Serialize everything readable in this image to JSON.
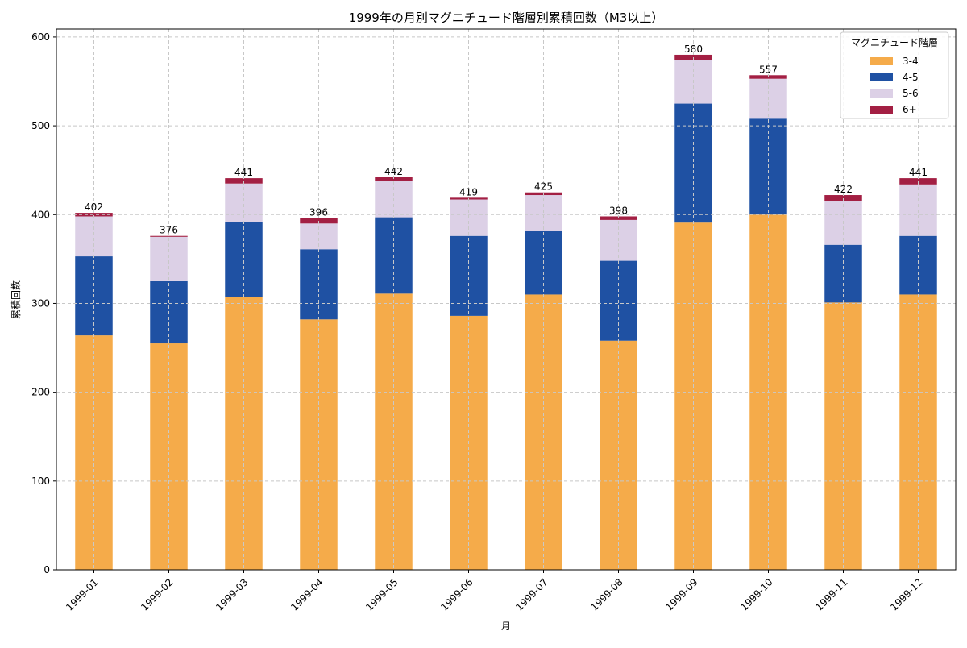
{
  "chart_data": {
    "type": "bar",
    "stacked": true,
    "title": "1999年の月別マグニチュード階層別累積回数（M3以上）",
    "xlabel": "月",
    "ylabel": "累積回数",
    "ylim": [
      0,
      609
    ],
    "yticks": [
      0,
      100,
      200,
      300,
      400,
      500,
      600
    ],
    "grid": true,
    "legend": {
      "title": "マグニチュード階層",
      "placement": "top-right"
    },
    "categories": [
      "1999-01",
      "1999-02",
      "1999-03",
      "1999-04",
      "1999-05",
      "1999-06",
      "1999-07",
      "1999-08",
      "1999-09",
      "1999-10",
      "1999-11",
      "1999-12"
    ],
    "series": [
      {
        "name": "3-4",
        "color": "#f5ab4a",
        "values": [
          264,
          255,
          307,
          282,
          311,
          286,
          310,
          258,
          391,
          400,
          301,
          310
        ]
      },
      {
        "name": "4-5",
        "color": "#1f51a3",
        "values": [
          89,
          70,
          85,
          79,
          86,
          90,
          72,
          90,
          134,
          108,
          65,
          66
        ]
      },
      {
        "name": "5-6",
        "color": "#dcd0e6",
        "values": [
          45,
          50,
          43,
          29,
          41,
          41,
          40,
          46,
          49,
          45,
          49,
          58
        ]
      },
      {
        "name": "6+",
        "color": "#a31f43",
        "values": [
          4,
          1,
          6,
          6,
          4,
          2,
          3,
          4,
          6,
          4,
          7,
          7
        ]
      }
    ],
    "totals": [
      402,
      376,
      441,
      396,
      442,
      419,
      425,
      398,
      580,
      557,
      422,
      441
    ]
  }
}
